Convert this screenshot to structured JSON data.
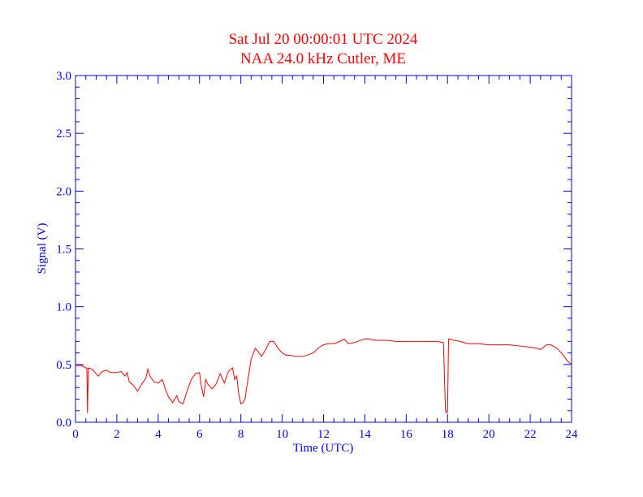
{
  "chart_data": {
    "type": "line",
    "title": "Sat Jul 20 00:00:01 UTC 2024",
    "subtitle": "NAA 24.0 kHz Cutler, ME",
    "xlabel": "Time (UTC)",
    "ylabel": "Signal (V)",
    "xlim": [
      0,
      24
    ],
    "ylim": [
      0,
      3.0
    ],
    "xticks": [
      0,
      2,
      4,
      6,
      8,
      10,
      12,
      14,
      16,
      18,
      20,
      22,
      24
    ],
    "xtick_labels": [
      "0",
      "2",
      "4",
      "6",
      "8",
      "10",
      "12",
      "14",
      "16",
      "18",
      "20",
      "22",
      "24"
    ],
    "yticks": [
      0,
      0.5,
      1.0,
      1.5,
      2.0,
      2.5,
      3.0
    ],
    "ytick_labels": [
      "0.0",
      "0.5",
      "1.0",
      "1.5",
      "2.0",
      "2.5",
      "3.0"
    ],
    "grid": false,
    "colors": {
      "title": "#ff0000",
      "axes": "#0000ff",
      "series": "#ff0000"
    },
    "series": [
      {
        "x": [
          0,
          0.3,
          0.5,
          0.55,
          0.58,
          0.62,
          0.8,
          1.0,
          1.1,
          1.3,
          1.5,
          1.7,
          2.0,
          2.2,
          2.4,
          2.5,
          2.6,
          2.8,
          3.0,
          3.2,
          3.4,
          3.5,
          3.6,
          3.8,
          4.0,
          4.2,
          4.4,
          4.5,
          4.7,
          4.9,
          5.0,
          5.2,
          5.4,
          5.6,
          5.8,
          6.0,
          6.1,
          6.2,
          6.3,
          6.4,
          6.6,
          6.8,
          7.0,
          7.2,
          7.4,
          7.6,
          7.7,
          7.8,
          7.9,
          8.0,
          8.1,
          8.2,
          8.3,
          8.5,
          8.7,
          8.8,
          9.0,
          9.2,
          9.4,
          9.6,
          9.8,
          10.0,
          10.2,
          10.4,
          10.6,
          10.8,
          11.0,
          11.2,
          11.5,
          11.8,
          12.0,
          12.2,
          12.5,
          12.8,
          13.0,
          13.2,
          13.5,
          13.8,
          14.0,
          14.2,
          14.5,
          15.0,
          15.5,
          16.0,
          16.5,
          17.0,
          17.5,
          17.8,
          17.9,
          17.95,
          18.0,
          18.05,
          18.1,
          18.3,
          18.6,
          19.0,
          19.5,
          20.0,
          20.5,
          21.0,
          21.5,
          22.0,
          22.3,
          22.5,
          22.8,
          23.0,
          23.3,
          23.6,
          23.8,
          24.0
        ],
        "y": [
          0.49,
          0.49,
          0.47,
          0.47,
          0.08,
          0.47,
          0.46,
          0.42,
          0.4,
          0.44,
          0.45,
          0.43,
          0.43,
          0.44,
          0.4,
          0.43,
          0.35,
          0.32,
          0.27,
          0.33,
          0.38,
          0.46,
          0.4,
          0.35,
          0.34,
          0.37,
          0.26,
          0.22,
          0.17,
          0.23,
          0.18,
          0.16,
          0.27,
          0.37,
          0.42,
          0.43,
          0.3,
          0.22,
          0.37,
          0.33,
          0.29,
          0.33,
          0.42,
          0.34,
          0.44,
          0.47,
          0.37,
          0.4,
          0.24,
          0.16,
          0.17,
          0.2,
          0.32,
          0.55,
          0.64,
          0.62,
          0.57,
          0.63,
          0.7,
          0.7,
          0.64,
          0.6,
          0.58,
          0.58,
          0.57,
          0.57,
          0.57,
          0.58,
          0.6,
          0.65,
          0.67,
          0.68,
          0.68,
          0.7,
          0.72,
          0.68,
          0.69,
          0.71,
          0.72,
          0.72,
          0.71,
          0.71,
          0.7,
          0.7,
          0.7,
          0.7,
          0.7,
          0.69,
          0.1,
          0.08,
          0.09,
          0.72,
          0.72,
          0.71,
          0.7,
          0.68,
          0.68,
          0.67,
          0.67,
          0.67,
          0.66,
          0.65,
          0.64,
          0.63,
          0.67,
          0.67,
          0.64,
          0.58,
          0.53,
          0.5
        ]
      }
    ]
  }
}
